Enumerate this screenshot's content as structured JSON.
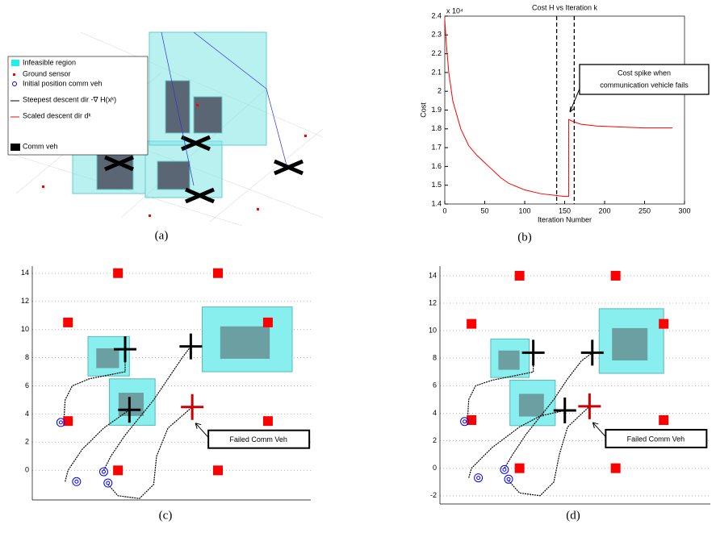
{
  "chart_data": [
    {
      "type": "scene3d",
      "caption": "(a)",
      "legend": [
        "Infeasible region",
        "Ground sensor",
        "Initial position comm veh",
        "Steepest descent dir -∇ H(xᵏ)",
        "Scaled descent dir dᵏ",
        "Comm veh"
      ]
    },
    {
      "type": "line",
      "caption": "(b)",
      "title": "Cost H vs Iteration k",
      "xlabel": "Iteration Number",
      "ylabel": "Cost",
      "y_multiplier": "x 10⁴",
      "xlim": [
        0,
        300
      ],
      "xticks": [
        0,
        50,
        100,
        150,
        200,
        250,
        300
      ],
      "ylim": [
        1.4,
        2.4
      ],
      "yticks": [
        1.4,
        1.5,
        1.6,
        1.7,
        1.8,
        1.9,
        2,
        2.1,
        2.2,
        2.3,
        2.4
      ],
      "vlines": [
        140,
        162
      ],
      "annotation": [
        "Cost spike when",
        "communication vehicle fails"
      ],
      "series": [
        {
          "color": "#ff0000",
          "x": [
            0,
            2,
            5,
            10,
            20,
            30,
            40,
            50,
            60,
            70,
            80,
            100,
            120,
            140,
            150,
            155,
            155,
            160,
            170,
            190,
            220,
            250,
            285
          ],
          "values": [
            2.38,
            2.25,
            2.1,
            1.95,
            1.8,
            1.71,
            1.66,
            1.62,
            1.58,
            1.54,
            1.51,
            1.475,
            1.455,
            1.445,
            1.44,
            1.44,
            1.85,
            1.84,
            1.825,
            1.815,
            1.81,
            1.805,
            1.805
          ]
        }
      ]
    },
    {
      "type": "map",
      "caption": "(c)",
      "xlim": [
        -2.5,
        17
      ],
      "ylim": [
        -2.1,
        14.5
      ],
      "yticks": [
        0,
        2,
        4,
        6,
        8,
        10,
        12,
        14
      ],
      "grid": true,
      "annotation": "Failed Comm Veh",
      "regions": [
        {
          "x": [
            1.4,
            4.3
          ],
          "y": [
            6.7,
            9.5
          ]
        },
        {
          "x": [
            2.9,
            6.1
          ],
          "y": [
            3.2,
            6.5
          ]
        },
        {
          "x": [
            9.4,
            15.7
          ],
          "y": [
            7.0,
            11.6
          ]
        }
      ],
      "sensors": {
        "color": "#ff0000",
        "x": [
          0,
          3.5,
          10.5,
          14,
          0,
          14,
          3.5,
          10.5
        ],
        "y": [
          10.5,
          14,
          14,
          10.5,
          3.5,
          3.5,
          0,
          0
        ]
      },
      "vehicles": {
        "color": "#000000",
        "x": [
          4.0,
          8.6,
          4.3
        ],
        "y": [
          8.6,
          8.8,
          4.3
        ]
      },
      "failed_vehicle": {
        "color": "#cc0000",
        "x": [
          8.7
        ],
        "y": [
          4.5
        ]
      },
      "initial_positions": {
        "color": "#0000ff",
        "x": [
          -0.5,
          0.6,
          2.5,
          2.8
        ],
        "y": [
          3.4,
          -0.8,
          -0.1,
          -0.9
        ]
      },
      "paths": [
        {
          "x": [
            -0.3,
            -0.2,
            0.3,
            1.5,
            3,
            4,
            4
          ],
          "y": [
            3.4,
            5,
            6,
            6.5,
            6.8,
            7,
            8.6
          ]
        },
        {
          "x": [
            -0.2,
            0,
            1,
            2.5,
            4.3
          ],
          "y": [
            -0.8,
            0,
            1.5,
            3,
            4.3
          ]
        },
        {
          "x": [
            2.5,
            3,
            4,
            6,
            7,
            8,
            8.6
          ],
          "y": [
            0,
            1,
            2.5,
            5,
            6.5,
            8,
            8.8
          ]
        },
        {
          "x": [
            2.8,
            3.5,
            5,
            6,
            6.2,
            7,
            8.7
          ],
          "y": [
            -1,
            -1.8,
            -2,
            -1,
            1,
            3,
            4.5
          ]
        }
      ]
    },
    {
      "type": "map",
      "caption": "(d)",
      "xlim": [
        -2.3,
        17.4
      ],
      "ylim": [
        -2.6,
        14.7
      ],
      "yticks": [
        -2,
        0,
        2,
        4,
        6,
        8,
        10,
        12,
        14
      ],
      "grid": true,
      "annotation": "Failed Comm Veh",
      "regions": [
        {
          "x": [
            1.4,
            4.2
          ],
          "y": [
            6.6,
            9.4
          ]
        },
        {
          "x": [
            2.8,
            6.1
          ],
          "y": [
            3.1,
            6.4
          ]
        },
        {
          "x": [
            9.3,
            14
          ],
          "y": [
            6.9,
            11.6
          ]
        }
      ],
      "sensors": {
        "color": "#ff0000",
        "x": [
          0,
          3.5,
          10.5,
          14,
          0,
          14,
          3.5,
          10.5
        ],
        "y": [
          10.5,
          14,
          14,
          10.5,
          3.5,
          3.5,
          0,
          0
        ]
      },
      "vehicles": {
        "color": "#000000",
        "x": [
          4.5,
          8.8,
          6.8
        ],
        "y": [
          8.4,
          8.4,
          4.2
        ]
      },
      "failed_vehicle": {
        "color": "#cc0000",
        "x": [
          8.6
        ],
        "y": [
          4.5
        ]
      },
      "initial_positions": {
        "color": "#0000ff",
        "x": [
          -0.5,
          0.5,
          2.4,
          2.7
        ],
        "y": [
          3.4,
          -0.7,
          -0.1,
          -0.8
        ]
      },
      "paths": [
        {
          "x": [
            -0.3,
            -0.2,
            0.3,
            1.5,
            3,
            4.5,
            4.5
          ],
          "y": [
            3.4,
            5,
            6,
            6.4,
            6.7,
            7,
            8.4
          ]
        },
        {
          "x": [
            -0.2,
            0,
            1.5,
            3.5,
            5,
            6.8
          ],
          "y": [
            -0.7,
            0,
            1.5,
            3,
            3.8,
            4.2
          ]
        },
        {
          "x": [
            2.4,
            3,
            4,
            6,
            7,
            8,
            8.8
          ],
          "y": [
            0,
            1,
            2.5,
            5,
            6.5,
            7.8,
            8.4
          ]
        },
        {
          "x": [
            2.7,
            3.5,
            5,
            6,
            6.4,
            7,
            8.6
          ],
          "y": [
            -0.9,
            -1.8,
            -2,
            -1,
            1,
            3,
            4.5
          ]
        }
      ]
    }
  ]
}
